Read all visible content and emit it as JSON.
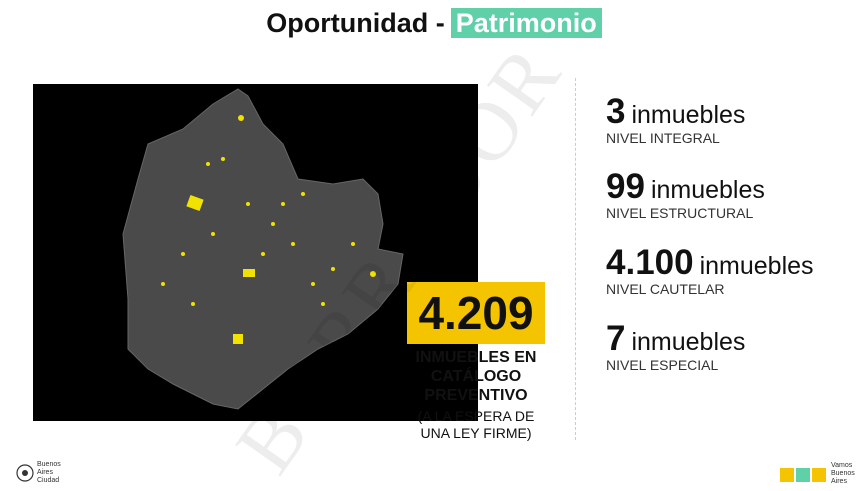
{
  "header": {
    "title": "Oportunidad -",
    "highlight": "Patrimonio"
  },
  "summary": {
    "total": "4.209",
    "label_lines": [
      "INMUEBLES EN",
      "CATÁLOGO",
      "PREVENTIVO"
    ],
    "note_lines": [
      "(A LA ESPERA DE",
      "UNA LEY FIRME)"
    ]
  },
  "levels": [
    {
      "count": "3",
      "unit": "inmuebles",
      "level": "NIVEL INTEGRAL"
    },
    {
      "count": "99",
      "unit": "inmuebles",
      "level": "NIVEL ESTRUCTURAL"
    },
    {
      "count": "4.100",
      "unit": "inmuebles",
      "level": "NIVEL CAUTELAR"
    },
    {
      "count": "7",
      "unit": "inmuebles",
      "level": "NIVEL ESPECIAL"
    }
  ],
  "watermark": "BORRADOR",
  "footer": {
    "left_logo": [
      "Buenos",
      "Aires",
      "Ciudad"
    ],
    "right_logo": [
      "Vamos",
      "Buenos",
      "Aires"
    ]
  }
}
